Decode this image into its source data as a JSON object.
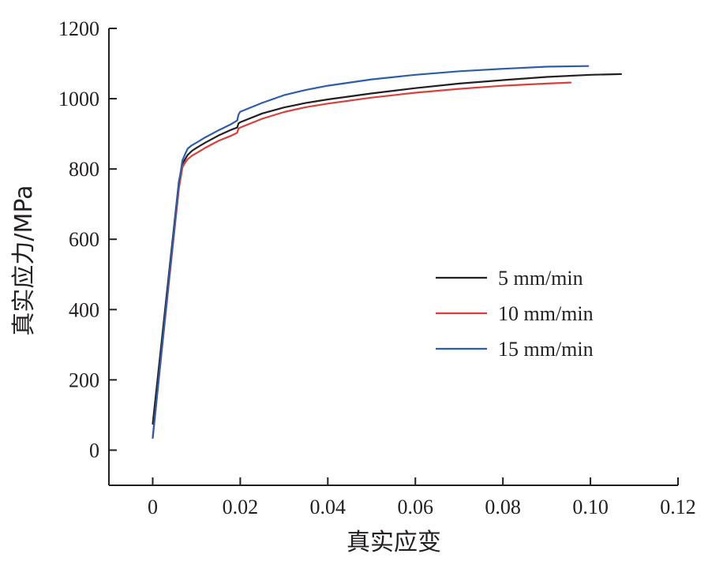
{
  "chart_data": {
    "type": "line",
    "xlabel": "真实应变",
    "ylabel": "真实应力/MPa",
    "xlim": [
      -0.01,
      0.12
    ],
    "ylim": [
      -100,
      1200
    ],
    "x_ticks": [
      0,
      0.02,
      0.04,
      0.06,
      0.08,
      0.1,
      0.12
    ],
    "x_tick_labels": [
      "0",
      "0.02",
      "0.04",
      "0.06",
      "0.08",
      "0.10",
      "0.12"
    ],
    "y_ticks": [
      0,
      200,
      400,
      600,
      800,
      1000,
      1200
    ],
    "y_tick_labels": [
      "0",
      "200",
      "400",
      "600",
      "800",
      "1000",
      "1200"
    ],
    "grid": false,
    "legend_position": "right-center",
    "series": [
      {
        "name": "5 mm/min",
        "color": "#231f20",
        "x": [
          0,
          0.002,
          0.004,
          0.006,
          0.0068,
          0.0075,
          0.008,
          0.009,
          0.01,
          0.012,
          0.015,
          0.018,
          0.0193,
          0.0196,
          0.02,
          0.025,
          0.03,
          0.035,
          0.04,
          0.05,
          0.06,
          0.07,
          0.08,
          0.09,
          0.1,
          0.107
        ],
        "y": [
          75,
          305,
          535,
          765,
          815,
          830,
          840,
          852,
          860,
          875,
          895,
          912,
          918,
          930,
          933,
          958,
          975,
          988,
          998,
          1015,
          1030,
          1043,
          1053,
          1062,
          1068,
          1070
        ]
      },
      {
        "name": "10 mm/min",
        "color": "#d9403b",
        "x": [
          0,
          0.002,
          0.004,
          0.006,
          0.0068,
          0.0075,
          0.008,
          0.009,
          0.01,
          0.012,
          0.015,
          0.018,
          0.0193,
          0.0196,
          0.02,
          0.025,
          0.03,
          0.035,
          0.04,
          0.05,
          0.06,
          0.07,
          0.08,
          0.09,
          0.0955
        ],
        "y": [
          35,
          275,
          510,
          745,
          805,
          820,
          828,
          838,
          845,
          860,
          880,
          895,
          903,
          915,
          918,
          943,
          962,
          976,
          986,
          1003,
          1017,
          1028,
          1037,
          1043,
          1046
        ]
      },
      {
        "name": "15 mm/min",
        "color": "#2e5da8",
        "x": [
          0,
          0.002,
          0.004,
          0.006,
          0.0068,
          0.0075,
          0.008,
          0.009,
          0.01,
          0.012,
          0.015,
          0.018,
          0.0193,
          0.0196,
          0.02,
          0.025,
          0.03,
          0.035,
          0.04,
          0.05,
          0.06,
          0.07,
          0.08,
          0.09,
          0.0995
        ],
        "y": [
          35,
          280,
          520,
          760,
          825,
          845,
          858,
          868,
          875,
          890,
          910,
          928,
          938,
          955,
          963,
          988,
          1010,
          1025,
          1037,
          1055,
          1068,
          1078,
          1085,
          1091,
          1093
        ]
      }
    ]
  }
}
